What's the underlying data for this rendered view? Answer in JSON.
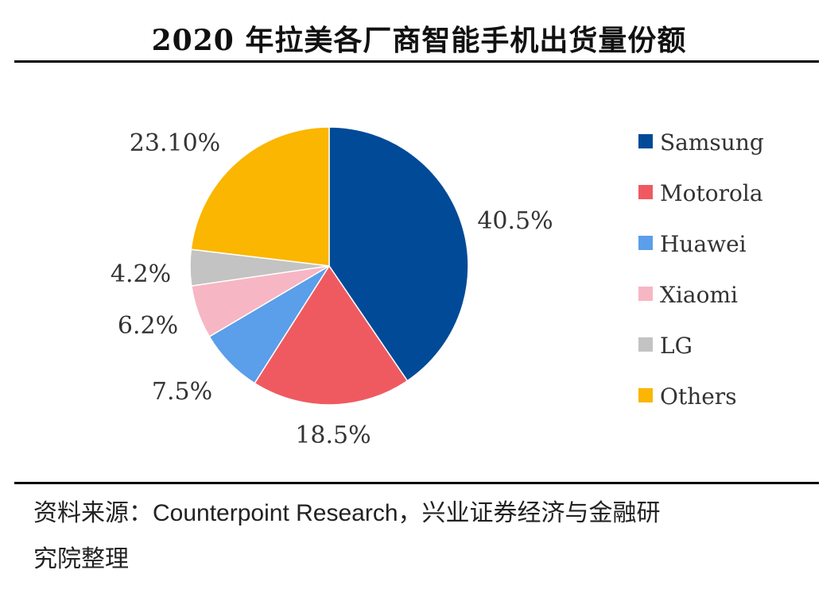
{
  "title": "2020 年拉美各厂商智能手机出货量份额",
  "colors": {
    "Samsung": "#004a97",
    "Motorola": "#ef5a60",
    "Huawei": "#5b9ee9",
    "Xiaomi": "#f7b6c3",
    "LG": "#c3c3c3",
    "Others": "#fab600",
    "rule": "#000000",
    "label_text": "#333333"
  },
  "chart_data": {
    "type": "pie",
    "title": "2020 年拉美各厂商智能手机出货量份额",
    "legend_position": "right",
    "start_angle_deg": 0,
    "direction": "clockwise",
    "slices": [
      {
        "label": "Samsung",
        "value": 40.5,
        "display": "40.5%"
      },
      {
        "label": "Motorola",
        "value": 18.5,
        "display": "18.5%"
      },
      {
        "label": "Huawei",
        "value": 7.5,
        "display": "7.5%"
      },
      {
        "label": "Xiaomi",
        "value": 6.2,
        "display": "6.2%"
      },
      {
        "label": "LG",
        "value": 4.2,
        "display": "4.2%"
      },
      {
        "label": "Others",
        "value": 23.1,
        "display": "23.10%"
      }
    ]
  },
  "source": {
    "prefix": "资料来源：",
    "org": "Counterpoint Research",
    "suffix_line1": "，兴业证券经济与金融研",
    "line2": "究院整理"
  }
}
